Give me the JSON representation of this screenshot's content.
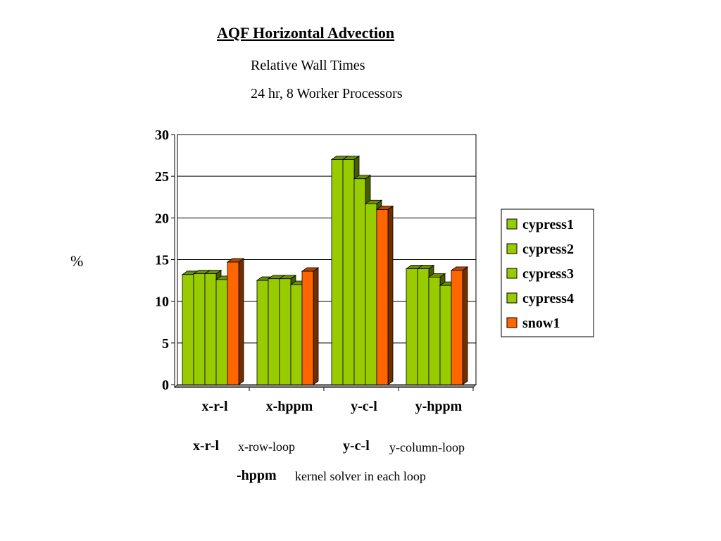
{
  "chart_data": {
    "type": "bar",
    "style": "3d-clustered",
    "title": "AQF Horizontal Advection",
    "subtitle": [
      "Relative Wall Times",
      "24 hr, 8 Worker Processors"
    ],
    "ylabel": "%",
    "xlabel": "",
    "ylim": [
      0,
      30
    ],
    "yticks": [
      0,
      5,
      10,
      15,
      20,
      25,
      30
    ],
    "grid": true,
    "legend_position": "right",
    "categories": [
      "x-r-l",
      "x-hppm",
      "y-c-l",
      "y-hppm"
    ],
    "series": [
      {
        "name": "cypress1",
        "color": "#99cc00",
        "values": [
          13.2,
          12.5,
          27.0,
          13.9
        ]
      },
      {
        "name": "cypress2",
        "color": "#99cc00",
        "values": [
          13.3,
          12.7,
          27.0,
          13.9
        ]
      },
      {
        "name": "cypress3",
        "color": "#99cc00",
        "values": [
          13.3,
          12.7,
          24.7,
          12.9
        ]
      },
      {
        "name": "cypress4",
        "color": "#99cc00",
        "values": [
          12.6,
          12.0,
          21.7,
          11.9
        ]
      },
      {
        "name": "snow1",
        "color": "#ff6600",
        "values": [
          14.7,
          13.6,
          21.0,
          13.7
        ]
      }
    ]
  },
  "notes": {
    "xrl_abbr": "x-r-l",
    "xrl_desc": "x-row-loop",
    "ycl_abbr": "y-c-l",
    "ycl_desc": "y-column-loop",
    "hppm_abbr": "-hppm",
    "hppm_desc": "kernel solver in each loop"
  }
}
